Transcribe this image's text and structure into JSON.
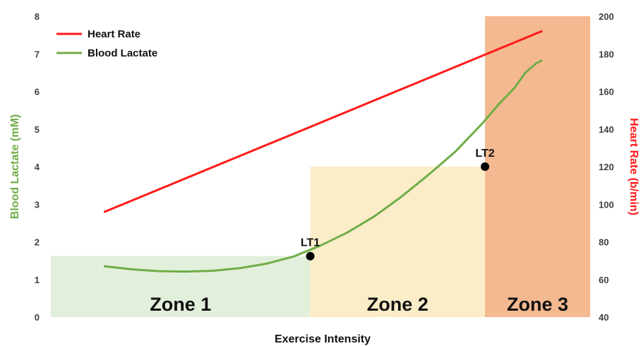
{
  "chart_data": {
    "type": "line",
    "xlabel": "Exercise Intensity",
    "ylabel_left": "Blood Lactate (mM)",
    "ylabel_right": "Heart Rate (b/min)",
    "ylim_left": [
      0,
      8
    ],
    "ylim_right": [
      40,
      200
    ],
    "yticks_left": [
      0,
      1,
      2,
      3,
      4,
      5,
      6,
      7,
      8
    ],
    "yticks_right": [
      40,
      60,
      80,
      100,
      120,
      140,
      160,
      180,
      200
    ],
    "xlim": [
      0,
      100
    ],
    "legend": {
      "placement": "top-left",
      "entries": [
        {
          "name": "Heart Rate",
          "color": "#ff1a1a"
        },
        {
          "name": "Blood Lactate",
          "color": "#70ad47"
        }
      ]
    },
    "series": [
      {
        "name": "Heart Rate",
        "axis": "right",
        "color": "#ff1a1a",
        "x": [
          10,
          91
        ],
        "y": [
          96,
          192
        ]
      },
      {
        "name": "Blood Lactate",
        "axis": "left",
        "color": "#70ad47",
        "x": [
          10,
          15,
          20,
          25,
          30,
          35,
          40,
          45,
          50,
          55,
          60,
          65,
          70,
          75,
          80,
          83,
          86,
          88,
          90,
          91
        ],
        "y": [
          1.35,
          1.27,
          1.22,
          1.21,
          1.23,
          1.3,
          1.42,
          1.61,
          1.9,
          2.25,
          2.68,
          3.2,
          3.78,
          4.4,
          5.15,
          5.65,
          6.1,
          6.5,
          6.75,
          6.82
        ]
      }
    ],
    "zones": [
      {
        "label": "Zone 1",
        "x": [
          0,
          48.1
        ],
        "top": 1.62,
        "color": "#e2efda"
      },
      {
        "label": "Zone 2",
        "x": [
          48.1,
          80.5
        ],
        "top": 4.0,
        "color": "#fcedc9"
      },
      {
        "label": "Zone 3",
        "x": [
          80.5,
          100
        ],
        "top": 8.0,
        "color": "#f4b990"
      }
    ],
    "markers": [
      {
        "label": "LT1",
        "x": 48.1,
        "y": 1.62
      },
      {
        "label": "LT2",
        "x": 80.5,
        "y": 4.0
      }
    ]
  }
}
